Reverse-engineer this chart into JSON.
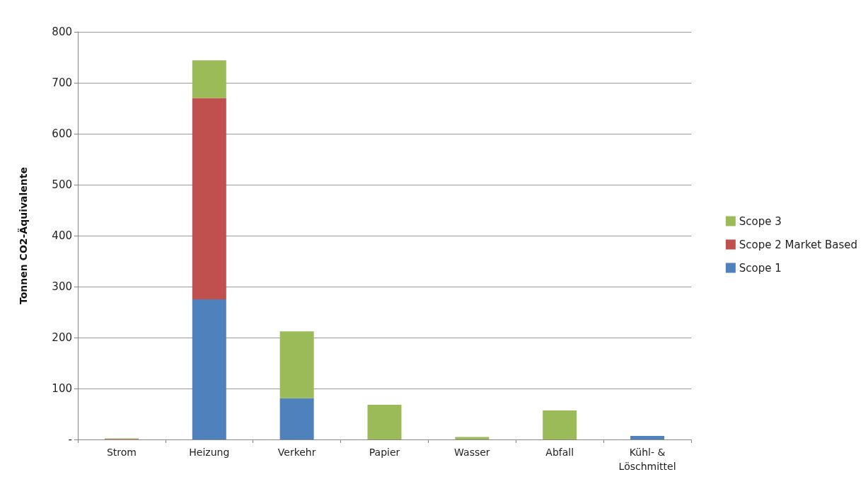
{
  "chart_data": {
    "type": "bar",
    "stacked": true,
    "categories": [
      "Strom",
      "Heizung",
      "Verkehr",
      "Papier",
      "Wasser",
      "Abfall",
      "Kühl- &\nLöschmittel"
    ],
    "ylabel": "Tonnen CO2-Äquivalente",
    "ylim": [
      0,
      800
    ],
    "yticks": [
      {
        "value": 0,
        "label": "-"
      },
      100,
      200,
      300,
      400,
      500,
      600,
      700,
      800
    ],
    "grid": "y",
    "legend": "right",
    "series": [
      {
        "name": "Scope 1",
        "color": "#4f81bd",
        "values": [
          0,
          275,
          81,
          0,
          0,
          0,
          7
        ]
      },
      {
        "name": "Scope 2 Market Based",
        "color": "#c0504d",
        "values": [
          1,
          395,
          0,
          0,
          0,
          0,
          0
        ]
      },
      {
        "name": "Scope 3",
        "color": "#9bbb59",
        "values": [
          1,
          74,
          131,
          68,
          5,
          57,
          0
        ]
      }
    ]
  }
}
